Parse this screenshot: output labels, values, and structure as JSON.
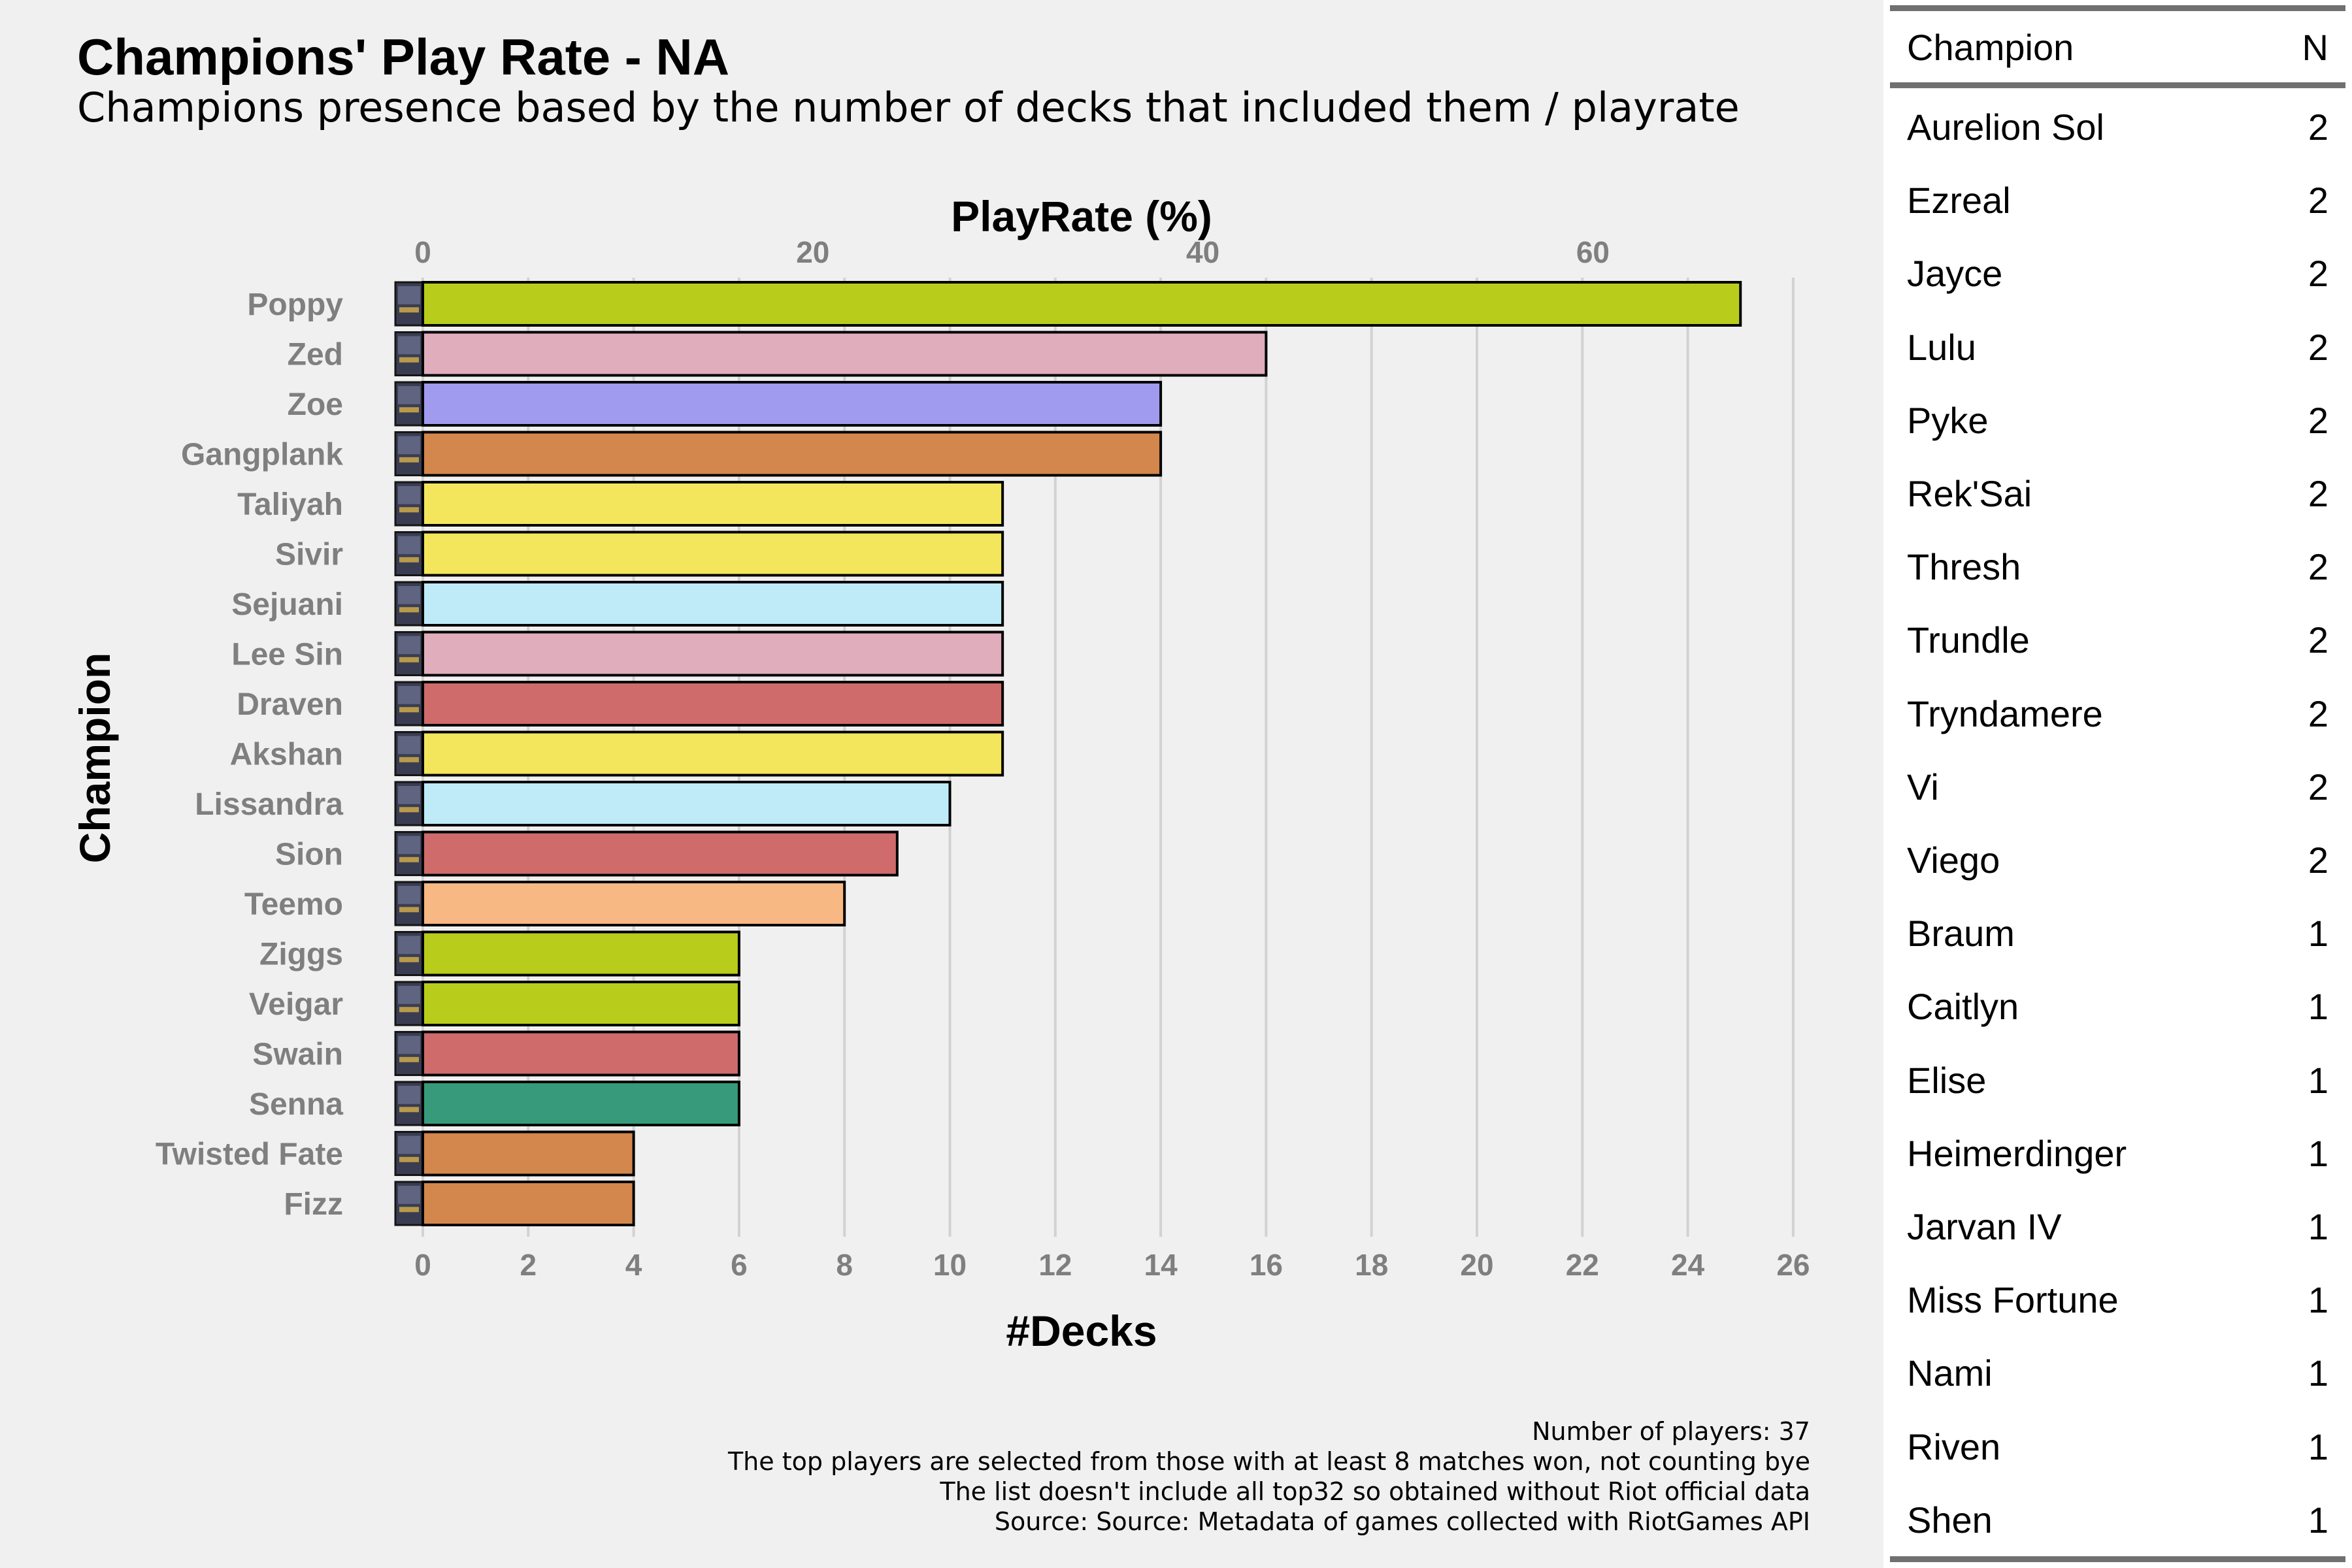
{
  "title": "Champions' Play Rate - NA",
  "subtitle": "Champions presence based by the number of decks that included them / playrate",
  "chart_data": {
    "type": "bar",
    "orientation": "horizontal",
    "categories": [
      "Poppy",
      "Zed",
      "Zoe",
      "Gangplank",
      "Taliyah",
      "Sivir",
      "Sejuani",
      "Lee Sin",
      "Draven",
      "Akshan",
      "Lissandra",
      "Sion",
      "Teemo",
      "Ziggs",
      "Veigar",
      "Swain",
      "Senna",
      "Twisted Fate",
      "Fizz"
    ],
    "values": [
      25,
      16,
      14,
      14,
      11,
      11,
      11,
      11,
      11,
      11,
      10,
      9,
      8,
      6,
      6,
      6,
      6,
      4,
      4
    ],
    "bar_colors": [
      "#b8cc1b",
      "#e0adbd",
      "#a09bee",
      "#d3874c",
      "#f3e65c",
      "#f3e65c",
      "#bfeaf8",
      "#e0adbd",
      "#cf6b6b",
      "#f3e65c",
      "#bfeaf8",
      "#cf6b6b",
      "#f7b884",
      "#b8cc1b",
      "#b8cc1b",
      "#cf6b6b",
      "#379b7b",
      "#d3874c",
      "#d3874c"
    ],
    "xlabel": "#Decks",
    "ylabel": "Champion",
    "secondary_xlabel": "PlayRate (%)",
    "xlim": [
      0,
      26
    ],
    "x_ticks": [
      0,
      2,
      4,
      6,
      8,
      10,
      12,
      14,
      16,
      18,
      20,
      22,
      24,
      26
    ],
    "secondary_ticks": [
      0,
      20,
      40,
      60
    ],
    "players": 37,
    "grid": "vertical major lines"
  },
  "caption": [
    "Number of players: 37",
    "The top players are selected from those with at least 8 matches won, not counting bye",
    "The list doesn't include all top32 so obtained without Riot official data",
    "Source: Source: Metadata of games collected with RiotGames API"
  ],
  "table": {
    "headers": [
      "Champion",
      "N"
    ],
    "rows": [
      [
        "Aurelion Sol",
        "2"
      ],
      [
        "Ezreal",
        "2"
      ],
      [
        "Jayce",
        "2"
      ],
      [
        "Lulu",
        "2"
      ],
      [
        "Pyke",
        "2"
      ],
      [
        "Rek'Sai",
        "2"
      ],
      [
        "Thresh",
        "2"
      ],
      [
        "Trundle",
        "2"
      ],
      [
        "Tryndamere",
        "2"
      ],
      [
        "Vi",
        "2"
      ],
      [
        "Viego",
        "2"
      ],
      [
        "Braum",
        "1"
      ],
      [
        "Caitlyn",
        "1"
      ],
      [
        "Elise",
        "1"
      ],
      [
        "Heimerdinger",
        "1"
      ],
      [
        "Jarvan IV",
        "1"
      ],
      [
        "Miss Fortune",
        "1"
      ],
      [
        "Nami",
        "1"
      ],
      [
        "Riven",
        "1"
      ],
      [
        "Shen",
        "1"
      ]
    ]
  },
  "colors": {
    "background": "#f0f0f0",
    "grid": "#d2d2d2",
    "tick_label": "#7f7f7f",
    "bar_border": "#000000",
    "table_rule": "#707070"
  }
}
